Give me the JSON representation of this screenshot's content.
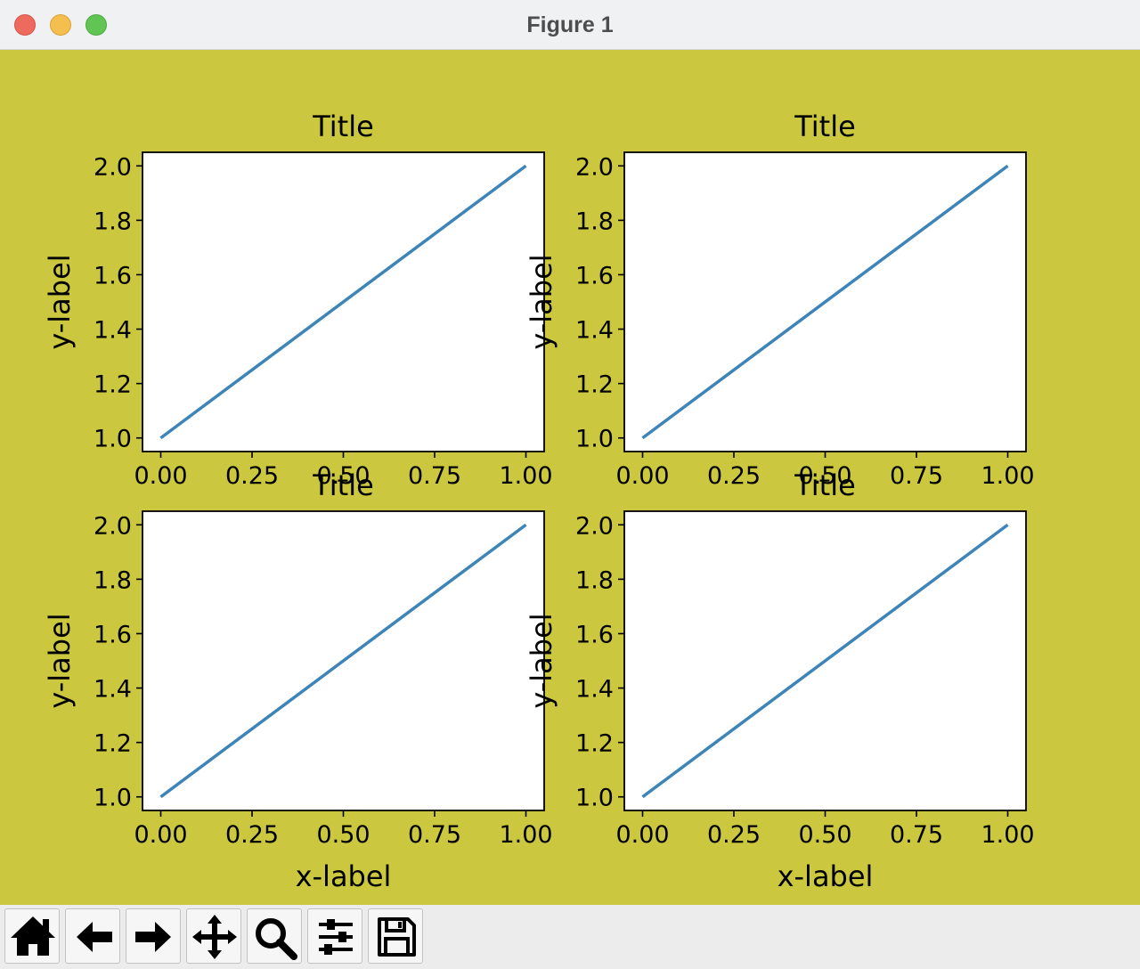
{
  "window": {
    "title": "Figure 1"
  },
  "colors": {
    "figure_bg": "#cbc73f",
    "axes_bg": "#ffffff",
    "line": "#3d85b8"
  },
  "chart_data": [
    {
      "type": "line",
      "title": "Title",
      "xlabel": "",
      "ylabel": "y-label",
      "x": [
        0,
        1
      ],
      "y": [
        1,
        2
      ],
      "xlim": [
        -0.05,
        1.05
      ],
      "ylim": [
        0.95,
        2.05
      ],
      "xticks": [
        "0.00",
        "0.25",
        "0.50",
        "0.75",
        "1.00"
      ],
      "yticks": [
        "1.0",
        "1.2",
        "1.4",
        "1.6",
        "1.8",
        "2.0"
      ],
      "grid": false
    },
    {
      "type": "line",
      "title": "Title",
      "xlabel": "",
      "ylabel": "y-label",
      "x": [
        0,
        1
      ],
      "y": [
        1,
        2
      ],
      "xlim": [
        -0.05,
        1.05
      ],
      "ylim": [
        0.95,
        2.05
      ],
      "xticks": [
        "0.00",
        "0.25",
        "0.50",
        "0.75",
        "1.00"
      ],
      "yticks": [
        "1.0",
        "1.2",
        "1.4",
        "1.6",
        "1.8",
        "2.0"
      ],
      "grid": false
    },
    {
      "type": "line",
      "title": "Title",
      "xlabel": "x-label",
      "ylabel": "y-label",
      "x": [
        0,
        1
      ],
      "y": [
        1,
        2
      ],
      "xlim": [
        -0.05,
        1.05
      ],
      "ylim": [
        0.95,
        2.05
      ],
      "xticks": [
        "0.00",
        "0.25",
        "0.50",
        "0.75",
        "1.00"
      ],
      "yticks": [
        "1.0",
        "1.2",
        "1.4",
        "1.6",
        "1.8",
        "2.0"
      ],
      "grid": false
    },
    {
      "type": "line",
      "title": "Title",
      "xlabel": "x-label",
      "ylabel": "y-label",
      "x": [
        0,
        1
      ],
      "y": [
        1,
        2
      ],
      "xlim": [
        -0.05,
        1.05
      ],
      "ylim": [
        0.95,
        2.05
      ],
      "xticks": [
        "0.00",
        "0.25",
        "0.50",
        "0.75",
        "1.00"
      ],
      "yticks": [
        "1.0",
        "1.2",
        "1.4",
        "1.6",
        "1.8",
        "2.0"
      ],
      "grid": false
    }
  ],
  "toolbar": [
    {
      "name": "home-button",
      "icon": "home-icon"
    },
    {
      "name": "back-button",
      "icon": "arrow-left-icon"
    },
    {
      "name": "forward-button",
      "icon": "arrow-right-icon"
    },
    {
      "name": "pan-button",
      "icon": "move-icon"
    },
    {
      "name": "zoom-button",
      "icon": "magnifier-icon"
    },
    {
      "name": "configure-subplots-button",
      "icon": "sliders-icon"
    },
    {
      "name": "save-button",
      "icon": "floppy-disk-icon"
    }
  ]
}
